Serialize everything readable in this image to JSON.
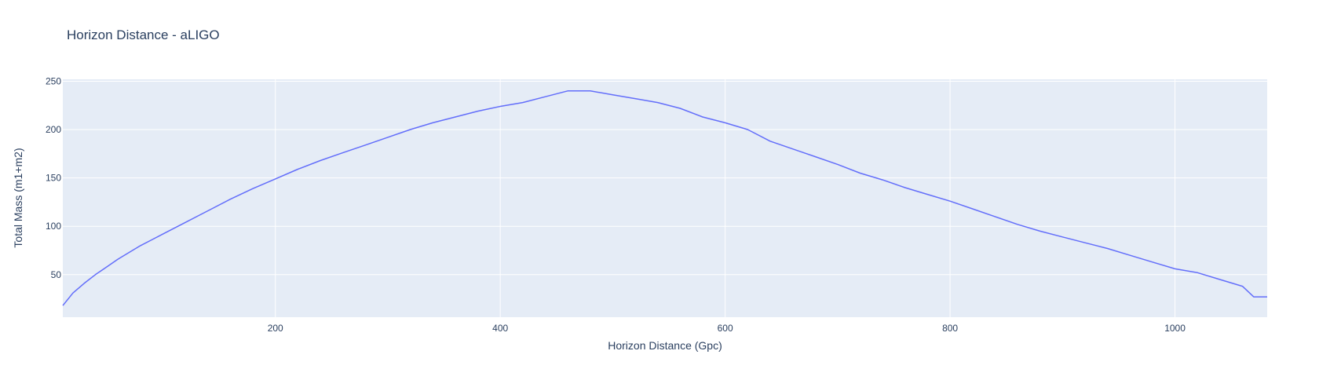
{
  "colors": {
    "plot_background": "#E5ECF6",
    "grid": "#FFFFFF",
    "series_line": "#636EFA",
    "text": "#2A3F5F"
  },
  "chart_data": {
    "type": "line",
    "title": "Horizon Distance - aLIGO",
    "xlabel": "Horizon Distance (Gpc)",
    "ylabel": "Total Mass (m1+m2)",
    "xlim": [
      11,
      1082
    ],
    "ylim": [
      6,
      252
    ],
    "xticks": [
      200,
      400,
      600,
      800,
      1000
    ],
    "yticks": [
      50,
      100,
      150,
      200,
      250
    ],
    "grid": true,
    "legend": "none",
    "series": [
      {
        "x": [
          11,
          20,
          30,
          40,
          50,
          60,
          70,
          80,
          90,
          100,
          120,
          140,
          160,
          180,
          200,
          220,
          240,
          260,
          280,
          300,
          320,
          340,
          360,
          380,
          400,
          420,
          440,
          460,
          480,
          500,
          520,
          540,
          560,
          580,
          600,
          620,
          640,
          660,
          680,
          700,
          720,
          740,
          760,
          780,
          800,
          820,
          840,
          860,
          880,
          900,
          920,
          940,
          960,
          980,
          1000,
          1020,
          1040,
          1060,
          1070,
          1082
        ],
        "y": [
          18,
          31,
          41,
          50,
          58,
          66,
          73,
          80,
          86,
          92,
          104,
          116,
          128,
          139,
          149,
          159,
          168,
          176,
          184,
          192,
          200,
          207,
          213,
          219,
          224,
          228,
          234,
          240,
          240,
          236,
          232,
          228,
          222,
          213,
          207,
          200,
          188,
          180,
          172,
          164,
          155,
          148,
          140,
          133,
          126,
          118,
          110,
          102,
          95,
          89,
          83,
          77,
          70,
          63,
          56,
          52,
          45,
          38,
          27,
          27
        ]
      }
    ]
  }
}
